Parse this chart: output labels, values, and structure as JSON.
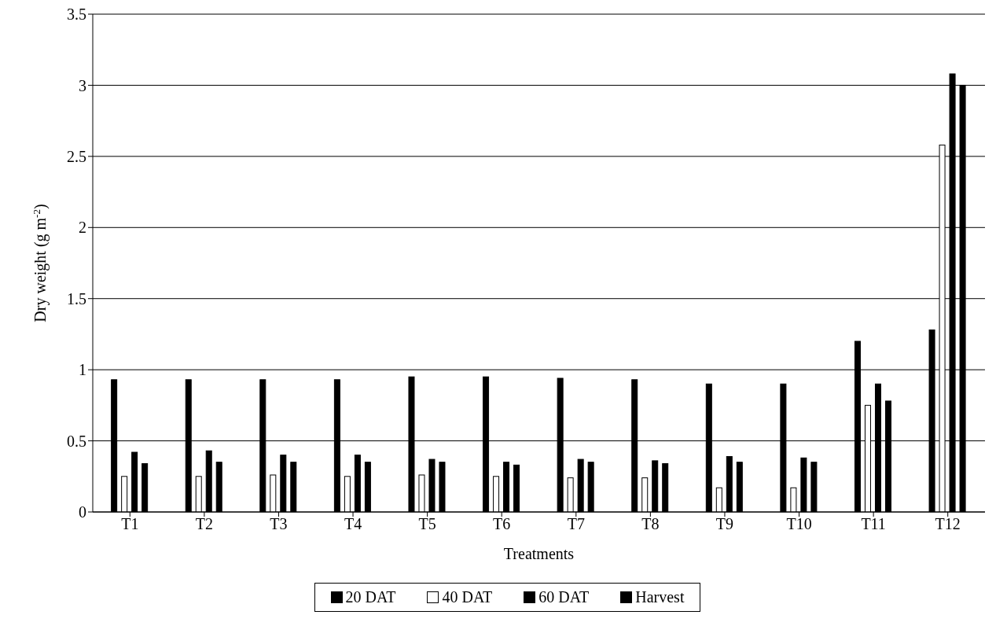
{
  "chart_data": {
    "type": "bar",
    "xlabel": "Treatments",
    "ylabel": "Dry weight (g m$^{-2}$)",
    "categories": [
      "T1",
      "T2",
      "T3",
      "T4",
      "T5",
      "T6",
      "T7",
      "T8",
      "T9",
      "T10",
      "T11",
      "T12"
    ],
    "series": [
      {
        "name": "20 DAT",
        "color": "#000000",
        "values": [
          0.93,
          0.93,
          0.93,
          0.93,
          0.95,
          0.95,
          0.94,
          0.93,
          0.9,
          0.9,
          1.2,
          1.28
        ]
      },
      {
        "name": "40 DAT",
        "color": "#ffffff",
        "values": [
          0.25,
          0.25,
          0.26,
          0.25,
          0.26,
          0.25,
          0.24,
          0.24,
          0.17,
          0.17,
          0.75,
          2.58
        ]
      },
      {
        "name": "60 DAT",
        "color": "#000000",
        "values": [
          0.42,
          0.43,
          0.4,
          0.4,
          0.37,
          0.35,
          0.37,
          0.36,
          0.39,
          0.38,
          0.9,
          3.08
        ]
      },
      {
        "name": "Harvest",
        "color": "#000000",
        "values": [
          0.34,
          0.35,
          0.35,
          0.35,
          0.35,
          0.33,
          0.35,
          0.34,
          0.35,
          0.35,
          0.78,
          3.0
        ]
      }
    ],
    "ylim": [
      0,
      3.5
    ],
    "yticks": [
      0,
      0.5,
      1,
      1.5,
      2,
      2.5,
      3,
      3.5
    ],
    "grid": "y",
    "legend": "bottom"
  }
}
